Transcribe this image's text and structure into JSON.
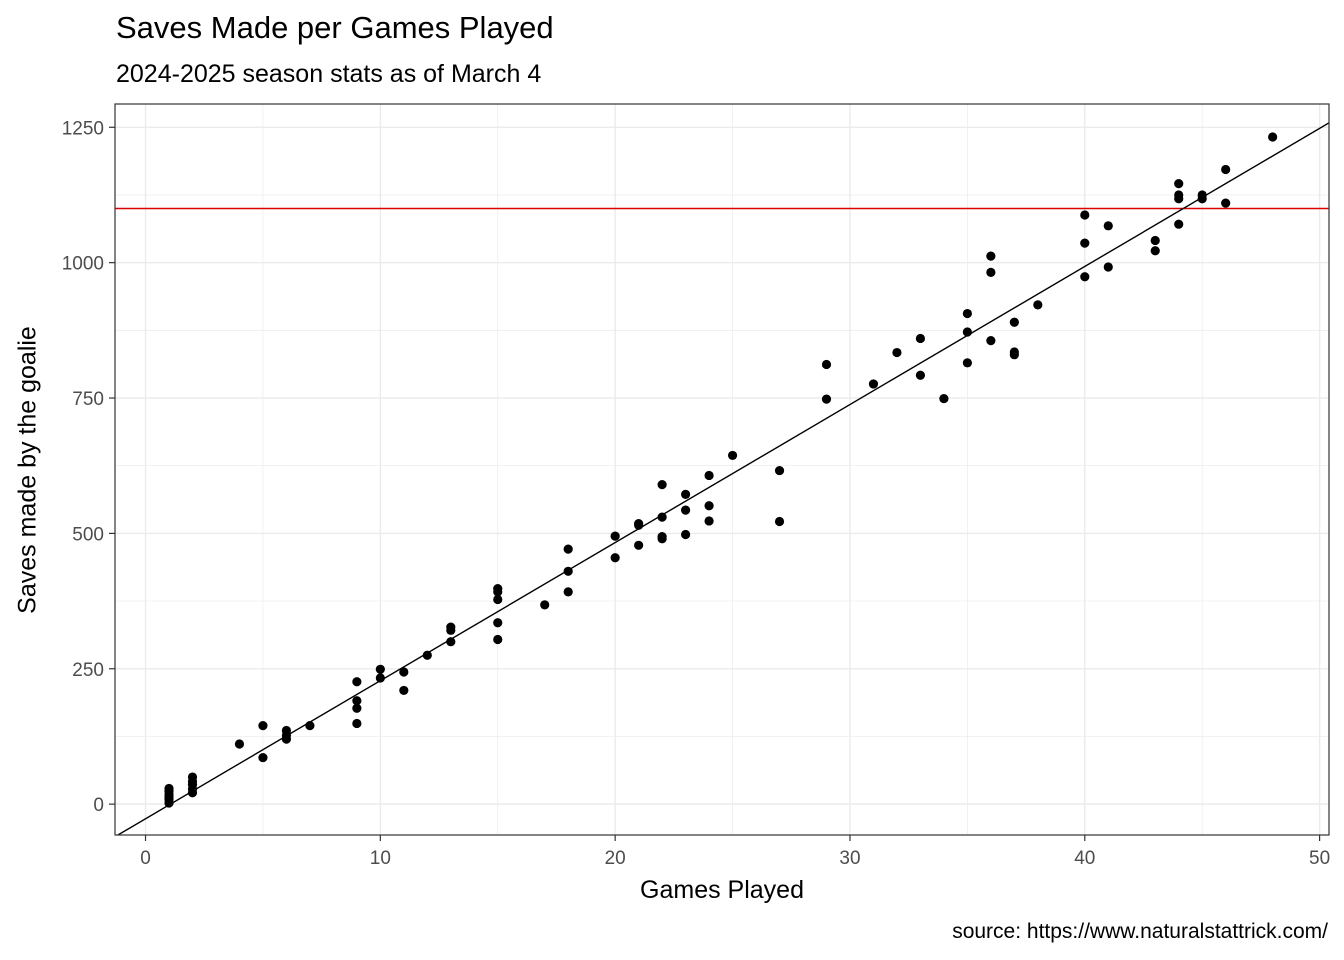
{
  "chart_data": {
    "type": "scatter",
    "title": "Saves Made per Games Played",
    "subtitle": "2024-2025 season stats as of March 4",
    "xlabel": "Games Played",
    "ylabel": "Saves made by the goalie",
    "caption": "source: https://www.naturalstattrick.com/",
    "xlim": [
      -1.3,
      50.4
    ],
    "ylim": [
      -57,
      1293
    ],
    "x_ticks": [
      0,
      10,
      20,
      30,
      40,
      50
    ],
    "y_ticks": [
      0,
      250,
      500,
      750,
      1000,
      1250
    ],
    "grid": true,
    "colors": {
      "points": "#000000",
      "fit_line": "#000000",
      "reference_line": "#dd0000",
      "grid": "#ebebeb"
    },
    "reference_line": {
      "orientation": "horizontal",
      "y": 1100
    },
    "fit_line": {
      "slope": 25.5,
      "intercept": -27
    },
    "points": [
      [
        1,
        2
      ],
      [
        1,
        8
      ],
      [
        1,
        13
      ],
      [
        1,
        18
      ],
      [
        1,
        24
      ],
      [
        1,
        29
      ],
      [
        2,
        21
      ],
      [
        2,
        28
      ],
      [
        2,
        36
      ],
      [
        2,
        42
      ],
      [
        2,
        50
      ],
      [
        4,
        111
      ],
      [
        5,
        86
      ],
      [
        5,
        145
      ],
      [
        6,
        120
      ],
      [
        6,
        127
      ],
      [
        6,
        136
      ],
      [
        7,
        145
      ],
      [
        9,
        149
      ],
      [
        9,
        177
      ],
      [
        9,
        191
      ],
      [
        9,
        226
      ],
      [
        10,
        233
      ],
      [
        10,
        249
      ],
      [
        11,
        210
      ],
      [
        11,
        244
      ],
      [
        12,
        275
      ],
      [
        13,
        300
      ],
      [
        13,
        321
      ],
      [
        13,
        327
      ],
      [
        15,
        304
      ],
      [
        15,
        335
      ],
      [
        15,
        378
      ],
      [
        15,
        392
      ],
      [
        15,
        398
      ],
      [
        17,
        368
      ],
      [
        18,
        392
      ],
      [
        18,
        430
      ],
      [
        18,
        471
      ],
      [
        20,
        455
      ],
      [
        20,
        495
      ],
      [
        21,
        478
      ],
      [
        21,
        515
      ],
      [
        21,
        518
      ],
      [
        22,
        490
      ],
      [
        22,
        494
      ],
      [
        22,
        530
      ],
      [
        22,
        590
      ],
      [
        23,
        498
      ],
      [
        23,
        543
      ],
      [
        23,
        572
      ],
      [
        24,
        523
      ],
      [
        24,
        551
      ],
      [
        24,
        607
      ],
      [
        25,
        644
      ],
      [
        27,
        522
      ],
      [
        27,
        616
      ],
      [
        29,
        748
      ],
      [
        29,
        812
      ],
      [
        31,
        776
      ],
      [
        32,
        834
      ],
      [
        33,
        792
      ],
      [
        33,
        860
      ],
      [
        34,
        749
      ],
      [
        35,
        815
      ],
      [
        35,
        872
      ],
      [
        35,
        906
      ],
      [
        36,
        856
      ],
      [
        36,
        982
      ],
      [
        36,
        1012
      ],
      [
        37,
        830
      ],
      [
        37,
        835
      ],
      [
        37,
        890
      ],
      [
        38,
        922
      ],
      [
        40,
        974
      ],
      [
        40,
        1036
      ],
      [
        40,
        1088
      ],
      [
        41,
        992
      ],
      [
        41,
        1068
      ],
      [
        43,
        1022
      ],
      [
        43,
        1041
      ],
      [
        44,
        1071
      ],
      [
        44,
        1118
      ],
      [
        44,
        1125
      ],
      [
        44,
        1146
      ],
      [
        45,
        1118
      ],
      [
        45,
        1125
      ],
      [
        46,
        1110
      ],
      [
        46,
        1172
      ],
      [
        48,
        1232
      ]
    ]
  }
}
